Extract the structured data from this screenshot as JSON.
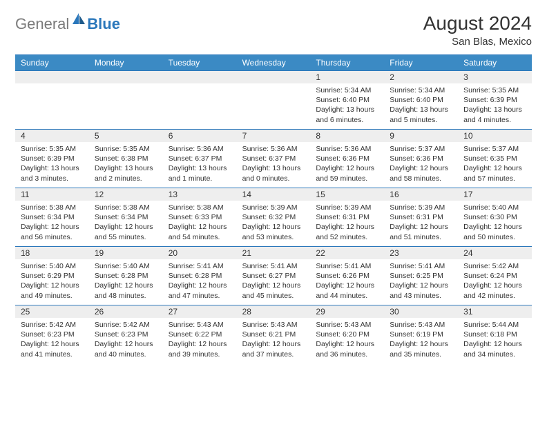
{
  "logo": {
    "gray": "General",
    "blue": "Blue"
  },
  "title": "August 2024",
  "location": "San Blas, Mexico",
  "colors": {
    "header_bg": "#3b8ac4",
    "border": "#2a77bb",
    "daynum_bg": "#eeeeee",
    "text": "#333333",
    "logo_gray": "#7a7a7a",
    "logo_blue": "#2a77bb"
  },
  "dayNames": [
    "Sunday",
    "Monday",
    "Tuesday",
    "Wednesday",
    "Thursday",
    "Friday",
    "Saturday"
  ],
  "weeks": [
    [
      {
        "n": "",
        "sr": "",
        "ss": "",
        "dl": ""
      },
      {
        "n": "",
        "sr": "",
        "ss": "",
        "dl": ""
      },
      {
        "n": "",
        "sr": "",
        "ss": "",
        "dl": ""
      },
      {
        "n": "",
        "sr": "",
        "ss": "",
        "dl": ""
      },
      {
        "n": "1",
        "sr": "Sunrise: 5:34 AM",
        "ss": "Sunset: 6:40 PM",
        "dl": "Daylight: 13 hours and 6 minutes."
      },
      {
        "n": "2",
        "sr": "Sunrise: 5:34 AM",
        "ss": "Sunset: 6:40 PM",
        "dl": "Daylight: 13 hours and 5 minutes."
      },
      {
        "n": "3",
        "sr": "Sunrise: 5:35 AM",
        "ss": "Sunset: 6:39 PM",
        "dl": "Daylight: 13 hours and 4 minutes."
      }
    ],
    [
      {
        "n": "4",
        "sr": "Sunrise: 5:35 AM",
        "ss": "Sunset: 6:39 PM",
        "dl": "Daylight: 13 hours and 3 minutes."
      },
      {
        "n": "5",
        "sr": "Sunrise: 5:35 AM",
        "ss": "Sunset: 6:38 PM",
        "dl": "Daylight: 13 hours and 2 minutes."
      },
      {
        "n": "6",
        "sr": "Sunrise: 5:36 AM",
        "ss": "Sunset: 6:37 PM",
        "dl": "Daylight: 13 hours and 1 minute."
      },
      {
        "n": "7",
        "sr": "Sunrise: 5:36 AM",
        "ss": "Sunset: 6:37 PM",
        "dl": "Daylight: 13 hours and 0 minutes."
      },
      {
        "n": "8",
        "sr": "Sunrise: 5:36 AM",
        "ss": "Sunset: 6:36 PM",
        "dl": "Daylight: 12 hours and 59 minutes."
      },
      {
        "n": "9",
        "sr": "Sunrise: 5:37 AM",
        "ss": "Sunset: 6:36 PM",
        "dl": "Daylight: 12 hours and 58 minutes."
      },
      {
        "n": "10",
        "sr": "Sunrise: 5:37 AM",
        "ss": "Sunset: 6:35 PM",
        "dl": "Daylight: 12 hours and 57 minutes."
      }
    ],
    [
      {
        "n": "11",
        "sr": "Sunrise: 5:38 AM",
        "ss": "Sunset: 6:34 PM",
        "dl": "Daylight: 12 hours and 56 minutes."
      },
      {
        "n": "12",
        "sr": "Sunrise: 5:38 AM",
        "ss": "Sunset: 6:34 PM",
        "dl": "Daylight: 12 hours and 55 minutes."
      },
      {
        "n": "13",
        "sr": "Sunrise: 5:38 AM",
        "ss": "Sunset: 6:33 PM",
        "dl": "Daylight: 12 hours and 54 minutes."
      },
      {
        "n": "14",
        "sr": "Sunrise: 5:39 AM",
        "ss": "Sunset: 6:32 PM",
        "dl": "Daylight: 12 hours and 53 minutes."
      },
      {
        "n": "15",
        "sr": "Sunrise: 5:39 AM",
        "ss": "Sunset: 6:31 PM",
        "dl": "Daylight: 12 hours and 52 minutes."
      },
      {
        "n": "16",
        "sr": "Sunrise: 5:39 AM",
        "ss": "Sunset: 6:31 PM",
        "dl": "Daylight: 12 hours and 51 minutes."
      },
      {
        "n": "17",
        "sr": "Sunrise: 5:40 AM",
        "ss": "Sunset: 6:30 PM",
        "dl": "Daylight: 12 hours and 50 minutes."
      }
    ],
    [
      {
        "n": "18",
        "sr": "Sunrise: 5:40 AM",
        "ss": "Sunset: 6:29 PM",
        "dl": "Daylight: 12 hours and 49 minutes."
      },
      {
        "n": "19",
        "sr": "Sunrise: 5:40 AM",
        "ss": "Sunset: 6:28 PM",
        "dl": "Daylight: 12 hours and 48 minutes."
      },
      {
        "n": "20",
        "sr": "Sunrise: 5:41 AM",
        "ss": "Sunset: 6:28 PM",
        "dl": "Daylight: 12 hours and 47 minutes."
      },
      {
        "n": "21",
        "sr": "Sunrise: 5:41 AM",
        "ss": "Sunset: 6:27 PM",
        "dl": "Daylight: 12 hours and 45 minutes."
      },
      {
        "n": "22",
        "sr": "Sunrise: 5:41 AM",
        "ss": "Sunset: 6:26 PM",
        "dl": "Daylight: 12 hours and 44 minutes."
      },
      {
        "n": "23",
        "sr": "Sunrise: 5:41 AM",
        "ss": "Sunset: 6:25 PM",
        "dl": "Daylight: 12 hours and 43 minutes."
      },
      {
        "n": "24",
        "sr": "Sunrise: 5:42 AM",
        "ss": "Sunset: 6:24 PM",
        "dl": "Daylight: 12 hours and 42 minutes."
      }
    ],
    [
      {
        "n": "25",
        "sr": "Sunrise: 5:42 AM",
        "ss": "Sunset: 6:23 PM",
        "dl": "Daylight: 12 hours and 41 minutes."
      },
      {
        "n": "26",
        "sr": "Sunrise: 5:42 AM",
        "ss": "Sunset: 6:23 PM",
        "dl": "Daylight: 12 hours and 40 minutes."
      },
      {
        "n": "27",
        "sr": "Sunrise: 5:43 AM",
        "ss": "Sunset: 6:22 PM",
        "dl": "Daylight: 12 hours and 39 minutes."
      },
      {
        "n": "28",
        "sr": "Sunrise: 5:43 AM",
        "ss": "Sunset: 6:21 PM",
        "dl": "Daylight: 12 hours and 37 minutes."
      },
      {
        "n": "29",
        "sr": "Sunrise: 5:43 AM",
        "ss": "Sunset: 6:20 PM",
        "dl": "Daylight: 12 hours and 36 minutes."
      },
      {
        "n": "30",
        "sr": "Sunrise: 5:43 AM",
        "ss": "Sunset: 6:19 PM",
        "dl": "Daylight: 12 hours and 35 minutes."
      },
      {
        "n": "31",
        "sr": "Sunrise: 5:44 AM",
        "ss": "Sunset: 6:18 PM",
        "dl": "Daylight: 12 hours and 34 minutes."
      }
    ]
  ]
}
